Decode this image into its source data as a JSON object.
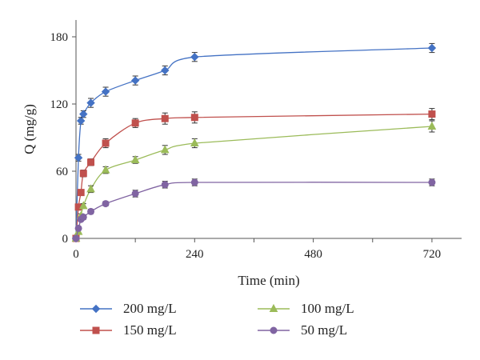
{
  "chart_data": {
    "type": "line",
    "xlabel": "Time (min)",
    "ylabel": "Q (mg/g)",
    "xlim": [
      0,
      780
    ],
    "ylim": [
      0,
      195
    ],
    "x_ticks": [
      0,
      240,
      480,
      720
    ],
    "y_ticks": [
      0,
      60,
      120,
      180
    ],
    "grid": false,
    "legend_position": "bottom",
    "series": [
      {
        "name": "200 mg/L",
        "color": "#4472c4",
        "marker": "diamond",
        "x": [
          0,
          5,
          10,
          15,
          30,
          60,
          120,
          180,
          240,
          720
        ],
        "y": [
          0,
          72,
          105,
          111,
          121,
          131,
          141,
          150,
          162,
          170
        ],
        "err": [
          1,
          3,
          3,
          3,
          4,
          4,
          4,
          4,
          4,
          4
        ]
      },
      {
        "name": "150 mg/L",
        "color": "#c0504d",
        "marker": "square",
        "x": [
          0,
          5,
          10,
          15,
          30,
          60,
          120,
          180,
          240,
          720
        ],
        "y": [
          0,
          28,
          41,
          58,
          68,
          85,
          103,
          107,
          108,
          111
        ],
        "err": [
          1,
          2,
          2,
          3,
          3,
          4,
          4,
          5,
          5,
          5
        ]
      },
      {
        "name": "100 mg/L",
        "color": "#9bbb59",
        "marker": "triangle",
        "x": [
          0,
          5,
          10,
          15,
          30,
          60,
          120,
          180,
          240,
          720
        ],
        "y": [
          0,
          6,
          20,
          29,
          44,
          61,
          70,
          79,
          85,
          100
        ],
        "err": [
          1,
          2,
          2,
          2,
          3,
          3,
          3,
          4,
          4,
          5
        ]
      },
      {
        "name": "50 mg/L",
        "color": "#8064a2",
        "marker": "circle",
        "x": [
          0,
          5,
          10,
          15,
          30,
          60,
          120,
          180,
          240,
          720
        ],
        "y": [
          0,
          9,
          17,
          19,
          24,
          31,
          40,
          48,
          50,
          50
        ],
        "err": [
          1,
          1,
          1,
          2,
          2,
          2,
          3,
          3,
          3,
          3
        ]
      }
    ]
  }
}
